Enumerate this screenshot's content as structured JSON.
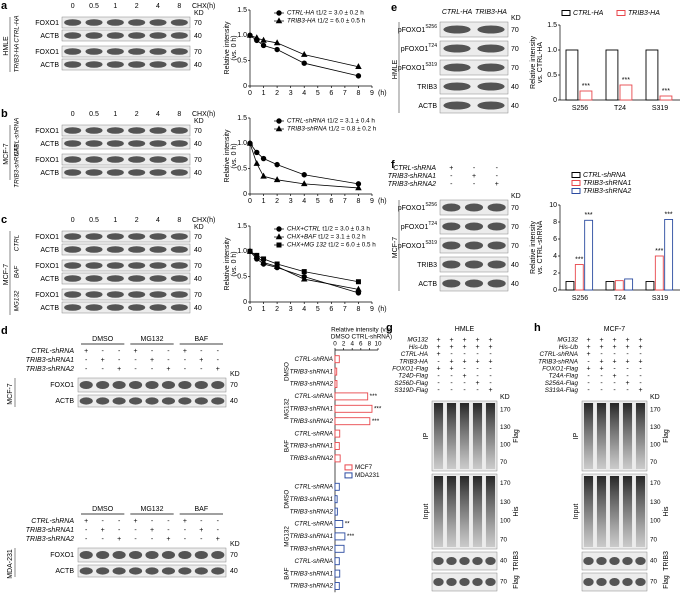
{
  "panels": [
    {
      "letter": "a",
      "cell": "HMLE",
      "lanes": [
        "0",
        "0.5",
        "1",
        "2",
        "4",
        "8"
      ],
      "lanes_unit": "CHX(h)",
      "kd_head": "KD",
      "groups": [
        {
          "name": "CTRL-HA",
          "blots": [
            {
              "label": "FOXO1",
              "kd": "70"
            },
            {
              "label": "ACTB",
              "kd": "40"
            }
          ]
        },
        {
          "name": "TRIB3-HA",
          "blots": [
            {
              "label": "FOXO1",
              "kd": "70"
            },
            {
              "label": "ACTB",
              "kd": "40"
            }
          ]
        }
      ]
    },
    {
      "letter": "b",
      "cell": "MCF-7",
      "lanes": [
        "0",
        "0.5",
        "1",
        "2",
        "4",
        "8"
      ],
      "lanes_unit": "CHX(h)",
      "kd_head": "KD",
      "groups": [
        {
          "name": "CTRL-shRNA",
          "blots": [
            {
              "label": "FOXO1",
              "kd": "70"
            },
            {
              "label": "ACTB",
              "kd": "40"
            }
          ]
        },
        {
          "name": "TRIB3-shRNA1",
          "blots": [
            {
              "label": "FOXO1",
              "kd": "70"
            },
            {
              "label": "ACTB",
              "kd": "40"
            }
          ]
        }
      ]
    },
    {
      "letter": "c",
      "cell": "MCF-7",
      "lanes": [
        "0",
        "0.5",
        "1",
        "2",
        "4",
        "8"
      ],
      "lanes_unit": "CHX(h)",
      "kd_head": "KD",
      "groups": [
        {
          "name": "CTRL",
          "blots": [
            {
              "label": "FOXO1",
              "kd": "70"
            },
            {
              "label": "ACTB",
              "kd": "40"
            }
          ]
        },
        {
          "name": "BAF",
          "blots": [
            {
              "label": "FOXO1",
              "kd": "70"
            },
            {
              "label": "ACTB",
              "kd": "40"
            }
          ]
        },
        {
          "name": "MG132",
          "blots": [
            {
              "label": "FOXO1",
              "kd": "70"
            },
            {
              "label": "ACTB",
              "kd": "40"
            }
          ]
        }
      ]
    },
    {
      "letter": "d",
      "blots": [
        {
          "cell": "MCF-7",
          "treatments": [
            "DMSO",
            "MG132",
            "BAF"
          ],
          "kd_head": "KD",
          "conditions": [
            {
              "name": "CTRL-shRNA",
              "signs": [
                "+",
                "-",
                "-",
                "+",
                "-",
                "-",
                "+",
                "-",
                "-"
              ]
            },
            {
              "name": "TRIB3-shRNA1",
              "signs": [
                "-",
                "+",
                "-",
                "-",
                "+",
                "-",
                "-",
                "+",
                "-"
              ]
            },
            {
              "name": "TRIB3-shRNA2",
              "signs": [
                "-",
                "-",
                "+",
                "-",
                "-",
                "+",
                "-",
                "-",
                "+"
              ]
            }
          ],
          "rows": [
            {
              "label": "FOXO1",
              "kd": "70"
            },
            {
              "label": "ACTB",
              "kd": "40"
            }
          ]
        },
        {
          "cell": "MDA-231",
          "treatments": [
            "DMSO",
            "MG132",
            "BAF"
          ],
          "kd_head": "KD",
          "conditions": [
            {
              "name": "CTRL-shRNA",
              "signs": [
                "+",
                "-",
                "-",
                "+",
                "-",
                "-",
                "+",
                "-",
                "-"
              ]
            },
            {
              "name": "TRIB3-shRNA1",
              "signs": [
                "-",
                "+",
                "-",
                "-",
                "+",
                "-",
                "-",
                "+",
                "-"
              ]
            },
            {
              "name": "TRIB3-shRNA2",
              "signs": [
                "-",
                "-",
                "+",
                "-",
                "-",
                "+",
                "-",
                "-",
                "+"
              ]
            }
          ],
          "rows": [
            {
              "label": "FOXO1",
              "kd": "70"
            },
            {
              "label": "ACTB",
              "kd": "40"
            }
          ]
        }
      ]
    },
    {
      "letter": "e",
      "cell": "HMLE",
      "lanes": [
        "CTRL-HA",
        "TRIB3-HA"
      ],
      "kd_head": "KD",
      "blots": [
        {
          "label": "pFOXO1",
          "site": "S256",
          "kd": "70"
        },
        {
          "label": "pFOXO1",
          "site": "T24",
          "kd": "70"
        },
        {
          "label": "pFOXO1",
          "site": "S319",
          "kd": "70"
        },
        {
          "label": "TRIB3",
          "kd": "40"
        },
        {
          "label": "ACTB",
          "kd": "40"
        }
      ]
    },
    {
      "letter": "f",
      "cell": "MCF-7",
      "kd_head": "KD",
      "conditions": [
        {
          "name": "CTRL-shRNA",
          "signs": [
            "+",
            "-",
            "-"
          ]
        },
        {
          "name": "TRIB3-shRNA1",
          "signs": [
            "-",
            "+",
            "-"
          ]
        },
        {
          "name": "TRIB3-shRNA2",
          "signs": [
            "-",
            "-",
            "+"
          ]
        }
      ],
      "blots": [
        {
          "label": "pFOXO1",
          "site": "S256",
          "kd": "70"
        },
        {
          "label": "pFOXO1",
          "site": "T24",
          "kd": "70"
        },
        {
          "label": "pFOXO1",
          "site": "S319",
          "kd": "70"
        },
        {
          "label": "TRIB3",
          "kd": "40"
        },
        {
          "label": "ACTB",
          "kd": "40"
        }
      ]
    },
    {
      "letter": "g",
      "cell": "HMLE",
      "kd_head": "KD",
      "conditions": [
        {
          "name": "MG132",
          "signs": [
            "+",
            "+",
            "+",
            "+",
            "+"
          ]
        },
        {
          "name": "His-Ub",
          "signs": [
            "+",
            "+",
            "+",
            "+",
            "+"
          ]
        },
        {
          "name": "CTRL-HA",
          "signs": [
            "+",
            "-",
            "-",
            "-",
            "-"
          ]
        },
        {
          "name": "TRIB3-HA",
          "signs": [
            "-",
            "+",
            "+",
            "+",
            "+"
          ]
        },
        {
          "name": "FOXO1-Flag",
          "signs": [
            "+",
            "+",
            "-",
            "-",
            "-"
          ]
        },
        {
          "name": "T24D-Flag",
          "signs": [
            "-",
            "-",
            "+",
            "-",
            "-"
          ]
        },
        {
          "name": "S256D-Flag",
          "signs": [
            "-",
            "-",
            "-",
            "+",
            "-"
          ]
        },
        {
          "name": "S319D-Flag",
          "signs": [
            "-",
            "-",
            "-",
            "-",
            "+"
          ]
        }
      ],
      "sections": [
        {
          "left": "IP",
          "right": "Flag",
          "kd": [
            "170",
            "130",
            "100",
            "70"
          ]
        },
        {
          "left": "Input",
          "right": "His",
          "kd": [
            "170",
            "130",
            "100",
            "70"
          ]
        },
        {
          "right": "TRIB3",
          "kd": [
            "40"
          ]
        },
        {
          "right": "Flag",
          "kd": [
            "70"
          ]
        }
      ]
    },
    {
      "letter": "h",
      "cell": "MCF-7",
      "kd_head": "KD",
      "conditions": [
        {
          "name": "MG132",
          "signs": [
            "+",
            "+",
            "+",
            "+",
            "+"
          ]
        },
        {
          "name": "His-Ub",
          "signs": [
            "+",
            "+",
            "+",
            "+",
            "+"
          ]
        },
        {
          "name": "CTRL-shRNA",
          "signs": [
            "+",
            "-",
            "-",
            "-",
            "-"
          ]
        },
        {
          "name": "TRIB3-shRNA",
          "signs": [
            "-",
            "+",
            "+",
            "+",
            "+"
          ]
        },
        {
          "name": "FOXO1-Flag",
          "signs": [
            "+",
            "+",
            "-",
            "-",
            "-"
          ]
        },
        {
          "name": "T24A-Flag",
          "signs": [
            "-",
            "-",
            "+",
            "-",
            "-"
          ]
        },
        {
          "name": "S256A-Flag",
          "signs": [
            "-",
            "-",
            "-",
            "+",
            "-"
          ]
        },
        {
          "name": "S319A-Flag",
          "signs": [
            "-",
            "-",
            "-",
            "-",
            "+"
          ]
        }
      ],
      "sections": [
        {
          "left": "IP",
          "right": "Flag",
          "kd": [
            "170",
            "130",
            "100",
            "70"
          ]
        },
        {
          "left": "Input",
          "right": "His",
          "kd": [
            "170",
            "130",
            "100",
            "70"
          ]
        },
        {
          "right": "TRIB3",
          "kd": [
            "40"
          ]
        },
        {
          "right": "Flag",
          "kd": [
            "70"
          ]
        }
      ]
    }
  ],
  "chart_data": [
    {
      "type": "line",
      "x": [
        0,
        0.5,
        1,
        2,
        4,
        8
      ],
      "xlim": [
        0,
        9
      ],
      "xticks": [
        0,
        1,
        2,
        3,
        4,
        5,
        6,
        7,
        8,
        9
      ],
      "xlabel": "(h)",
      "ylim": [
        0,
        1.5
      ],
      "yticks": [
        0,
        0.5,
        {
          "value": 1,
          "label": "1.0"
        },
        1.5
      ],
      "ylabel": [
        "Relative intensity",
        "(vs. 0 h)"
      ],
      "series": [
        {
          "name": "CTRL-HA",
          "half_life": "t1/2 = 3.0 ± 0.2 h",
          "color": "#000000",
          "marker": "circle",
          "values": [
            1,
            0.9,
            0.8,
            0.72,
            0.45,
            0.2
          ]
        },
        {
          "name": "TRIB3-HA",
          "half_life": "t1/2 = 6.0 ± 0.5 h",
          "color": "#000000",
          "marker": "triangle",
          "values": [
            1,
            0.95,
            0.9,
            0.85,
            0.62,
            0.38
          ]
        }
      ]
    },
    {
      "type": "line",
      "x": [
        0,
        0.5,
        1,
        2,
        4,
        8
      ],
      "xlim": [
        0,
        9
      ],
      "xticks": [
        0,
        1,
        2,
        3,
        4,
        5,
        6,
        7,
        8,
        9
      ],
      "xlabel": "(h)",
      "ylim": [
        0,
        1.5
      ],
      "yticks": [
        0,
        0.5,
        {
          "value": 1,
          "label": "1.0"
        },
        1.5
      ],
      "ylabel": [
        "Relative intensity",
        "(vs. 0 h)"
      ],
      "series": [
        {
          "name": "CTRL-shRNA",
          "half_life": "t1/2 = 3.1 ± 0.4 h",
          "color": "#000000",
          "marker": "circle",
          "values": [
            1,
            0.82,
            0.7,
            0.58,
            0.38,
            0.2
          ]
        },
        {
          "name": "TRIB3-shRNA",
          "half_life": "t1/2 = 0.8 ± 0.2 h",
          "color": "#000000",
          "marker": "triangle",
          "values": [
            1,
            0.6,
            0.35,
            0.28,
            0.2,
            0.12
          ]
        }
      ]
    },
    {
      "type": "line",
      "x": [
        0,
        0.5,
        1,
        2,
        4,
        8
      ],
      "xlim": [
        0,
        9
      ],
      "xticks": [
        0,
        1,
        2,
        3,
        4,
        5,
        6,
        7,
        8,
        9
      ],
      "xlabel": "(h)",
      "ylim": [
        0,
        1.5
      ],
      "yticks": [
        0,
        0.5,
        {
          "value": 1,
          "label": "1.0"
        },
        1.5
      ],
      "ylabel": [
        "Relative intensity",
        "(vs. 0 h)"
      ],
      "series": [
        {
          "name": "CHX+CTRL",
          "half_life": "t1/2 = 3.0 ± 0.3 h",
          "color": "#000000",
          "marker": "circle",
          "values": [
            1,
            0.85,
            0.75,
            0.68,
            0.5,
            0.18
          ]
        },
        {
          "name": "CHX+BAF",
          "half_life": "t1/2 = 3.1 ± 0.2 h",
          "color": "#000000",
          "marker": "triangle",
          "values": [
            1,
            0.9,
            0.78,
            0.7,
            0.45,
            0.25
          ]
        },
        {
          "name": "CHX+MG 132",
          "half_life": "t1/2 = 6.0 ± 0.5 h",
          "color": "#000000",
          "marker": "square",
          "values": [
            1,
            0.92,
            0.85,
            0.75,
            0.6,
            0.4
          ]
        }
      ]
    },
    {
      "type": "hbar",
      "title": [
        "Relative intensity (v.s.",
        "DMSO CTRL-shRNA)"
      ],
      "xlim": [
        0,
        10
      ],
      "xticks": [
        0,
        2,
        4,
        6,
        8,
        10
      ],
      "groups": [
        "DMSO",
        "MG132",
        "BAF",
        "DMSO",
        "MG132",
        "BAF"
      ],
      "categories": [
        "CTRL-shRNA",
        "TRIB3-shRNA1",
        "TRIB3-shRNA2",
        "CTRL-shRNA",
        "TRIB3-shRNA1",
        "TRIB3-shRNA2",
        "CTRL-shRNA",
        "TRIB3-shRNA1",
        "TRIB3-shRNA2",
        "CTRL-shRNA",
        "TRIB3-shRNA1",
        "TRIB3-shRNA2",
        "CTRL-shRNA",
        "TRIB3-shRNA1",
        "TRIB3-shRNA2",
        "CTRL-shRNA",
        "TRIB3-shRNA1",
        "TRIB3-shRNA2"
      ],
      "series": [
        {
          "name": "MCF7",
          "color": "#e8474c",
          "values": [
            1,
            0.4,
            0.45,
            7.6,
            8.6,
            8.1,
            1.1,
            1,
            1.2,
            null,
            null,
            null,
            null,
            null,
            null,
            null,
            null,
            null
          ]
        },
        {
          "name": "MDA231",
          "color": "#2b4ba0",
          "values": [
            null,
            null,
            null,
            null,
            null,
            null,
            null,
            null,
            null,
            1,
            0.5,
            0.55,
            1.8,
            2.3,
            2.1,
            1,
            1.1,
            1
          ]
        }
      ],
      "annotations": [
        "***",
        "***",
        "***",
        "**",
        "***"
      ]
    },
    {
      "type": "bar",
      "categories": [
        "S256",
        "T24",
        "S319"
      ],
      "ylim": [
        0,
        1.5
      ],
      "yticks": [
        0,
        0.5,
        {
          "value": 1,
          "label": "1.0"
        },
        1.5
      ],
      "ylabel": [
        "Relative intensity",
        "vs. CTRL-HA"
      ],
      "legend": "top",
      "series": [
        {
          "name": "CTRL-HA",
          "color": "#000000",
          "values": [
            1,
            1,
            1
          ]
        },
        {
          "name": "TRIB3-HA",
          "color": "#e8474c",
          "values": [
            0.18,
            0.3,
            0.08
          ]
        }
      ],
      "annotations": [
        "***",
        "***",
        "***"
      ]
    },
    {
      "type": "bar",
      "categories": [
        "S256",
        "T24",
        "S319"
      ],
      "ylim": [
        0,
        10
      ],
      "yticks": [
        0,
        2,
        4,
        6,
        8,
        10
      ],
      "ylabel": [
        "Relative intensity",
        "vs. CTRL-shRNA"
      ],
      "legend": "left",
      "series": [
        {
          "name": "CTRL-shRNA",
          "color": "#000000",
          "values": [
            1,
            1,
            1
          ]
        },
        {
          "name": "TRIB3-shRNA1",
          "color": "#e8474c",
          "values": [
            3,
            1.1,
            4
          ]
        },
        {
          "name": "TRIB3-shRNA2",
          "color": "#2b4ba0",
          "values": [
            8.2,
            1.3,
            8.3
          ]
        }
      ],
      "annotations": [
        "***",
        "***",
        "***",
        "***"
      ]
    }
  ]
}
